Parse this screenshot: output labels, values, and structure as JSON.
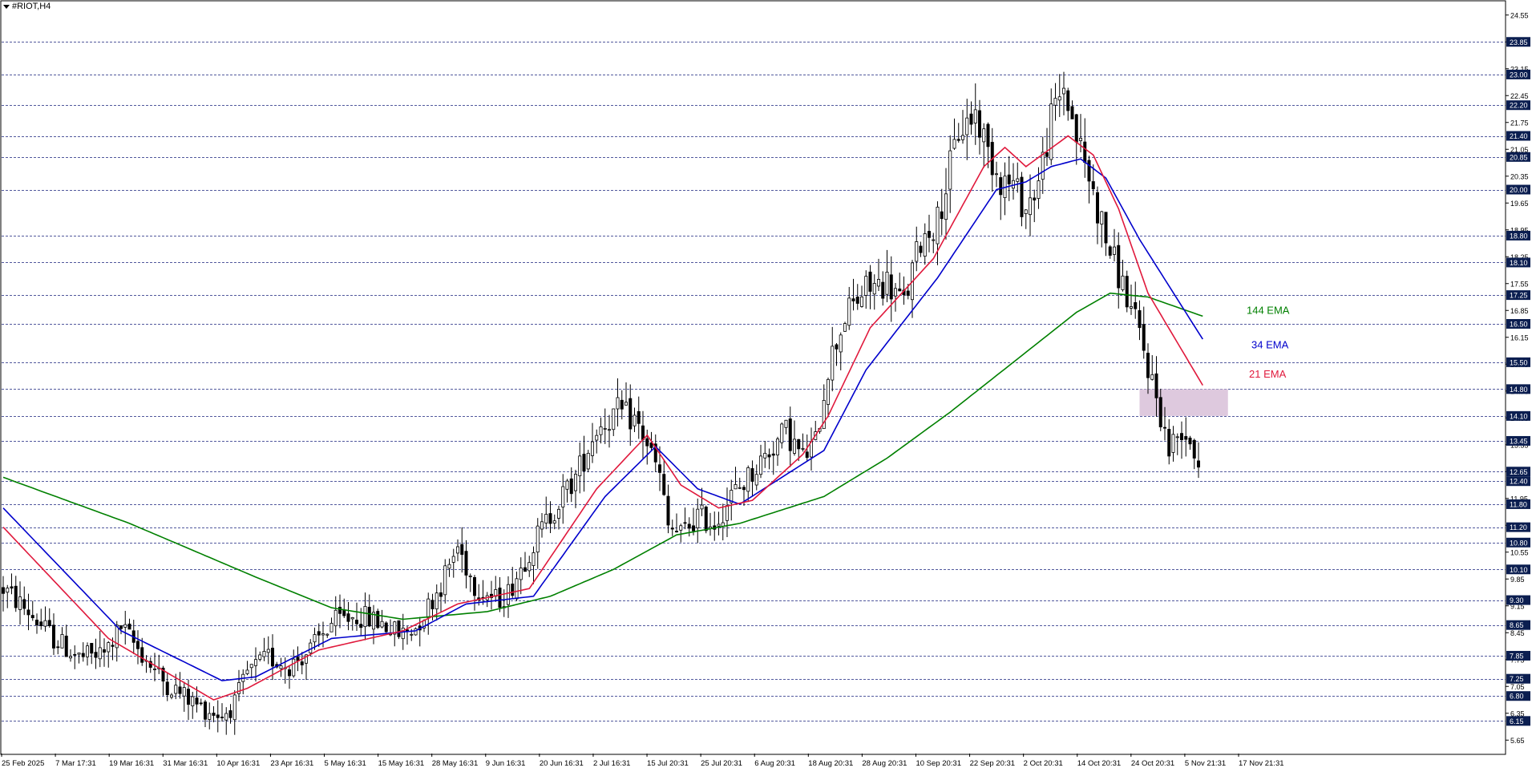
{
  "window": {
    "symbol_title": "#RIOT,H4"
  },
  "chart_data": {
    "type": "candlestick",
    "title": "#RIOT,H4",
    "ylim": [
      5.3,
      24.9
    ],
    "grid": false,
    "y_tick_labels": [
      "24.55",
      "23.85",
      "23.15",
      "22.45",
      "21.75",
      "21.05",
      "20.35",
      "19.65",
      "18.95",
      "18.25",
      "17.55",
      "16.85",
      "16.15",
      "15.45",
      "14.75",
      "14.05",
      "13.35",
      "12.65",
      "11.95",
      "11.25",
      "10.55",
      "9.85",
      "9.15",
      "8.45",
      "7.75",
      "7.05",
      "6.35",
      "5.65"
    ],
    "x_tick_labels": [
      "25 Feb 2025",
      "7 Mar 17:31",
      "19 Mar 16:31",
      "31 Mar 16:31",
      "10 Apr 16:31",
      "23 Apr 16:31",
      "5 May 16:31",
      "15 May 16:31",
      "28 May 16:31",
      "9 Jun 16:31",
      "20 Jun 16:31",
      "2 Jul 16:31",
      "15 Jul 20:31",
      "25 Jul 20:31",
      "6 Aug 20:31",
      "18 Aug 20:31",
      "28 Aug 20:31",
      "10 Sep 20:31",
      "22 Sep 20:31",
      "2 Oct 20:31",
      "14 Oct 20:31",
      "24 Oct 20:31",
      "5 Nov 21:31",
      "17 Nov 21:31"
    ],
    "levels": [
      23.85,
      23.0,
      22.2,
      21.4,
      20.85,
      20.0,
      18.8,
      18.1,
      17.25,
      16.5,
      15.5,
      14.8,
      14.1,
      13.45,
      12.65,
      12.4,
      11.8,
      11.2,
      10.8,
      10.1,
      9.3,
      8.65,
      7.85,
      7.25,
      6.8,
      6.15
    ],
    "level_labels": [
      "23.85",
      "23.00",
      "22.20",
      "21.40",
      "20.85",
      "20.00",
      "18.80",
      "18.10",
      "17.25",
      "16.50",
      "15.50",
      "14.80",
      "14.10",
      "13.45",
      "12.65",
      "12.40",
      "11.80",
      "11.20",
      "10.80",
      "10.10",
      "9.30",
      "8.65",
      "7.85",
      "7.25",
      "6.80",
      "6.15"
    ],
    "zone": {
      "low": 14.1,
      "high": 14.8,
      "color": "#d8bfd8"
    },
    "anchors": [
      [
        0,
        9.6
      ],
      [
        6,
        9.0
      ],
      [
        12,
        8.3
      ],
      [
        18,
        7.8
      ],
      [
        24,
        7.9
      ],
      [
        28,
        8.6
      ],
      [
        33,
        7.9
      ],
      [
        38,
        7.2
      ],
      [
        43,
        6.8
      ],
      [
        47,
        6.5
      ],
      [
        52,
        6.3
      ],
      [
        55,
        6.6
      ],
      [
        58,
        7.4
      ],
      [
        63,
        7.8
      ],
      [
        68,
        7.6
      ],
      [
        73,
        8.0
      ],
      [
        78,
        8.7
      ],
      [
        84,
        8.9
      ],
      [
        90,
        8.7
      ],
      [
        94,
        8.4
      ],
      [
        98,
        8.6
      ],
      [
        104,
        9.7
      ],
      [
        108,
        10.7
      ],
      [
        112,
        9.7
      ],
      [
        117,
        9.3
      ],
      [
        120,
        9.5
      ],
      [
        125,
        10.6
      ],
      [
        131,
        11.7
      ],
      [
        136,
        12.5
      ],
      [
        141,
        13.8
      ],
      [
        146,
        14.2
      ],
      [
        150,
        14.0
      ],
      [
        153,
        13.4
      ],
      [
        156,
        12.5
      ],
      [
        158,
        11.2
      ],
      [
        161,
        11.0
      ],
      [
        165,
        11.5
      ],
      [
        169,
        11.3
      ],
      [
        173,
        12.0
      ],
      [
        177,
        12.5
      ],
      [
        182,
        13.2
      ],
      [
        186,
        13.7
      ],
      [
        190,
        13.0
      ],
      [
        193,
        13.4
      ],
      [
        196,
        15.4
      ],
      [
        200,
        16.7
      ],
      [
        205,
        17.4
      ],
      [
        210,
        17.6
      ],
      [
        214,
        17.0
      ],
      [
        218,
        18.7
      ],
      [
        222,
        19.2
      ],
      [
        227,
        21.5
      ],
      [
        231,
        22.0
      ],
      [
        234,
        21.0
      ],
      [
        237,
        20.3
      ],
      [
        240,
        20.1
      ],
      [
        243,
        19.5
      ],
      [
        246,
        20.2
      ],
      [
        249,
        21.8
      ],
      [
        252,
        22.7
      ],
      [
        255,
        21.4
      ],
      [
        258,
        20.3
      ],
      [
        262,
        18.7
      ],
      [
        266,
        17.5
      ],
      [
        270,
        16.2
      ],
      [
        274,
        14.6
      ],
      [
        277,
        13.2
      ],
      [
        280,
        13.8
      ],
      [
        282,
        13.5
      ],
      [
        284,
        12.9
      ]
    ],
    "ema_21": [
      [
        0,
        11.2
      ],
      [
        25,
        8.3
      ],
      [
        50,
        6.7
      ],
      [
        58,
        7.0
      ],
      [
        75,
        8.0
      ],
      [
        95,
        8.5
      ],
      [
        108,
        9.2
      ],
      [
        125,
        9.6
      ],
      [
        141,
        12.2
      ],
      [
        153,
        13.6
      ],
      [
        161,
        12.3
      ],
      [
        170,
        11.7
      ],
      [
        178,
        11.9
      ],
      [
        190,
        13.1
      ],
      [
        196,
        14.1
      ],
      [
        206,
        16.4
      ],
      [
        221,
        18.2
      ],
      [
        233,
        20.6
      ],
      [
        238,
        21.1
      ],
      [
        243,
        20.6
      ],
      [
        253,
        21.4
      ],
      [
        259,
        20.9
      ],
      [
        265,
        19.5
      ],
      [
        272,
        17.3
      ],
      [
        285,
        14.9
      ]
    ],
    "ema_34": [
      [
        0,
        11.7
      ],
      [
        28,
        8.5
      ],
      [
        52,
        7.2
      ],
      [
        60,
        7.3
      ],
      [
        78,
        8.3
      ],
      [
        98,
        8.5
      ],
      [
        110,
        9.2
      ],
      [
        126,
        9.4
      ],
      [
        143,
        12.0
      ],
      [
        155,
        13.3
      ],
      [
        165,
        12.2
      ],
      [
        175,
        11.8
      ],
      [
        185,
        12.5
      ],
      [
        195,
        13.2
      ],
      [
        205,
        15.3
      ],
      [
        222,
        17.7
      ],
      [
        236,
        20.0
      ],
      [
        243,
        20.2
      ],
      [
        249,
        20.6
      ],
      [
        256,
        20.8
      ],
      [
        262,
        20.3
      ],
      [
        270,
        18.7
      ],
      [
        285,
        16.1
      ]
    ],
    "ema_144": [
      [
        0,
        12.5
      ],
      [
        30,
        11.3
      ],
      [
        60,
        9.9
      ],
      [
        78,
        9.1
      ],
      [
        95,
        8.8
      ],
      [
        115,
        9.0
      ],
      [
        130,
        9.4
      ],
      [
        145,
        10.1
      ],
      [
        160,
        11.0
      ],
      [
        175,
        11.3
      ],
      [
        195,
        12.0
      ],
      [
        210,
        13.0
      ],
      [
        225,
        14.2
      ],
      [
        240,
        15.5
      ],
      [
        255,
        16.8
      ],
      [
        263,
        17.3
      ],
      [
        272,
        17.2
      ],
      [
        285,
        16.7
      ]
    ],
    "series": [
      {
        "name": "144 EMA",
        "color": "#008000"
      },
      {
        "name": "34 EMA",
        "color": "#0000cc"
      },
      {
        "name": "21 EMA",
        "color": "#e0193c"
      }
    ]
  }
}
